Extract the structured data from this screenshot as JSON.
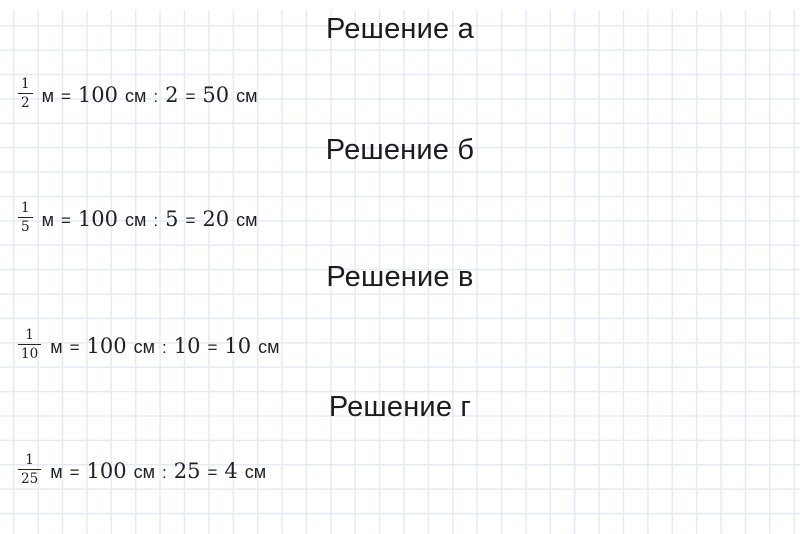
{
  "colors": {
    "page_background": "#ffffff",
    "grid_line": "#e5eaf8",
    "heading_text": "#1c1c1c",
    "formula_text": "#212121"
  },
  "solutions": [
    {
      "heading": "Решение а",
      "formula": {
        "numerator": "1",
        "denominator": "2",
        "unit_meter": "м",
        "equals_first": "=",
        "hundred": "100",
        "unit_cm_first": "см",
        "divide_sign": ":",
        "divisor": "2",
        "equals_second": "=",
        "result": "50",
        "unit_cm_second": "см"
      }
    },
    {
      "heading": "Решение б",
      "formula": {
        "numerator": "1",
        "denominator": "5",
        "unit_meter": "м",
        "equals_first": "=",
        "hundred": "100",
        "unit_cm_first": "см",
        "divide_sign": ":",
        "divisor": "5",
        "equals_second": "=",
        "result": "20",
        "unit_cm_second": "см"
      }
    },
    {
      "heading": "Решение в",
      "formula": {
        "numerator": "1",
        "denominator": "10",
        "unit_meter": "м",
        "equals_first": "=",
        "hundred": "100",
        "unit_cm_first": "см",
        "divide_sign": ":",
        "divisor": "10",
        "equals_second": "=",
        "result": "10",
        "unit_cm_second": "см"
      }
    },
    {
      "heading": "Решение г",
      "formula": {
        "numerator": "1",
        "denominator": "25",
        "unit_meter": "м",
        "equals_first": "=",
        "hundred": "100",
        "unit_cm_first": "см",
        "divide_sign": ":",
        "divisor": "25",
        "equals_second": "=",
        "result": "4",
        "unit_cm_second": "см"
      }
    }
  ]
}
